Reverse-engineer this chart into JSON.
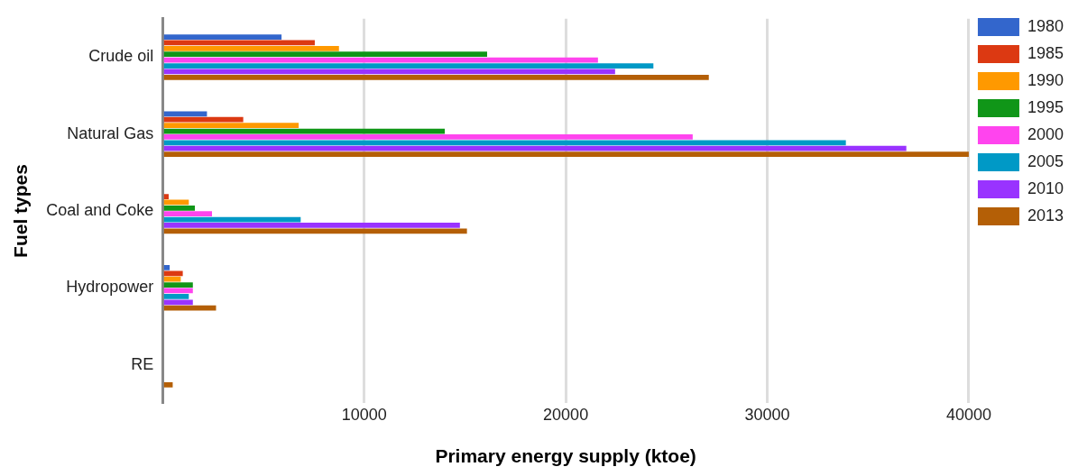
{
  "chart_data": {
    "type": "bar",
    "orientation": "horizontal",
    "xlabel": "Primary energy supply (ktoe)",
    "ylabel": "Fuel types",
    "categories": [
      "Crude oil",
      "Natural Gas",
      "Coal and Coke",
      "Hydropower",
      "RE"
    ],
    "series": [
      {
        "name": "1980",
        "color": "#3366cc",
        "values": [
          5900,
          2200,
          0,
          350,
          0
        ]
      },
      {
        "name": "1985",
        "color": "#dc3912",
        "values": [
          7550,
          4000,
          300,
          1000,
          0
        ]
      },
      {
        "name": "1990",
        "color": "#ff9900",
        "values": [
          8750,
          6750,
          1300,
          900,
          0
        ]
      },
      {
        "name": "1995",
        "color": "#109618",
        "values": [
          16100,
          14000,
          1600,
          1500,
          0
        ]
      },
      {
        "name": "2000",
        "color": "#ff44ee",
        "values": [
          21600,
          26300,
          2450,
          1500,
          0
        ]
      },
      {
        "name": "2005",
        "color": "#0099c6",
        "values": [
          24350,
          33900,
          6850,
          1300,
          0
        ]
      },
      {
        "name": "2010",
        "color": "#9933ff",
        "values": [
          22450,
          36900,
          14750,
          1500,
          0
        ]
      },
      {
        "name": "2013",
        "color": "#b45f06",
        "values": [
          27100,
          40000,
          15100,
          2650,
          500
        ]
      }
    ],
    "xlim": [
      0,
      40000
    ],
    "xticks": [
      {
        "value": 0,
        "label": null
      },
      10000,
      20000,
      30000,
      40000
    ],
    "grid": "x",
    "legend": "right"
  }
}
